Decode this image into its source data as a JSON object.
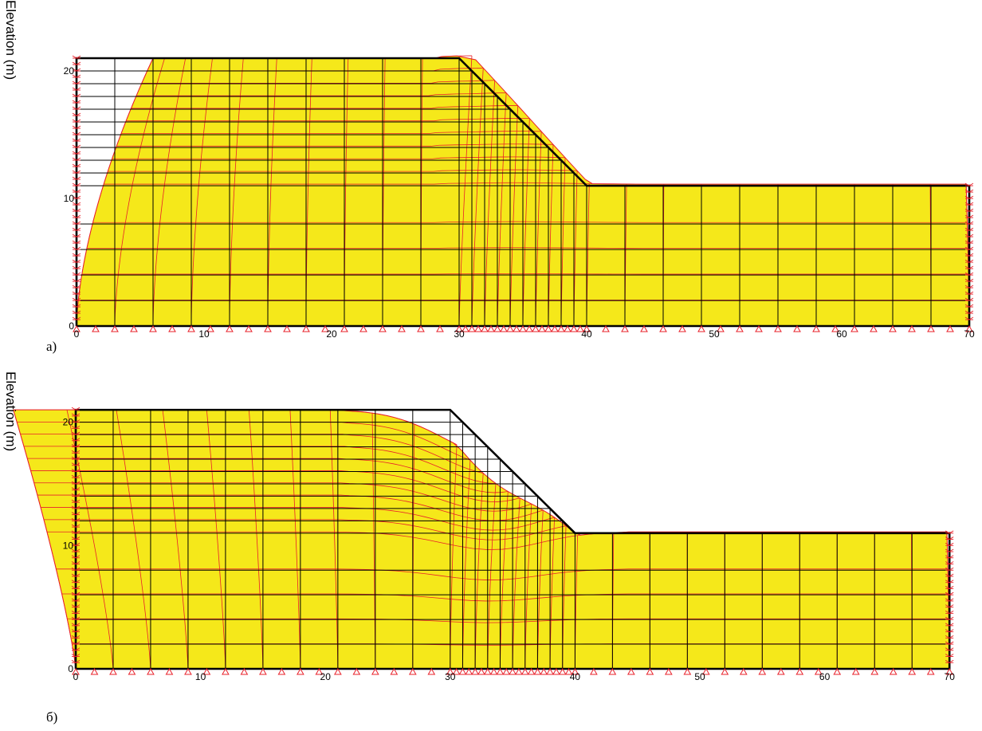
{
  "panels": [
    {
      "id": "a",
      "label": "а)",
      "ylabel": "Elevation (m)",
      "xticks": [
        "0",
        "10",
        "20",
        "30",
        "40",
        "50",
        "60",
        "70"
      ],
      "yticks": [
        "0",
        "10",
        "20"
      ],
      "domain": {
        "x": [
          0,
          70
        ],
        "y": [
          0,
          21
        ]
      },
      "slope": {
        "crest_x": 30,
        "toe_x": 40,
        "top_y": 21,
        "toe_y": 11
      },
      "deformation": "toward slope",
      "colors": {
        "deformed_fill": "#f5e81a",
        "deformed_mesh": "#e8202a",
        "mesh": "#000000",
        "supports": "#e8202a"
      }
    },
    {
      "id": "b",
      "label": "б)",
      "ylabel": "Elevation (m)",
      "xticks": [
        "0",
        "10",
        "20",
        "30",
        "40",
        "50",
        "60",
        "70"
      ],
      "yticks": [
        "0",
        "10",
        "20"
      ],
      "domain": {
        "x": [
          0,
          70
        ],
        "y": [
          0,
          21
        ]
      },
      "slope": {
        "crest_x": 30,
        "toe_x": 40,
        "top_y": 21,
        "toe_y": 11
      },
      "deformation": "away from slope",
      "colors": {
        "deformed_fill": "#f5e81a",
        "deformed_mesh": "#e8202a",
        "mesh": "#000000",
        "supports": "#e8202a"
      }
    }
  ]
}
